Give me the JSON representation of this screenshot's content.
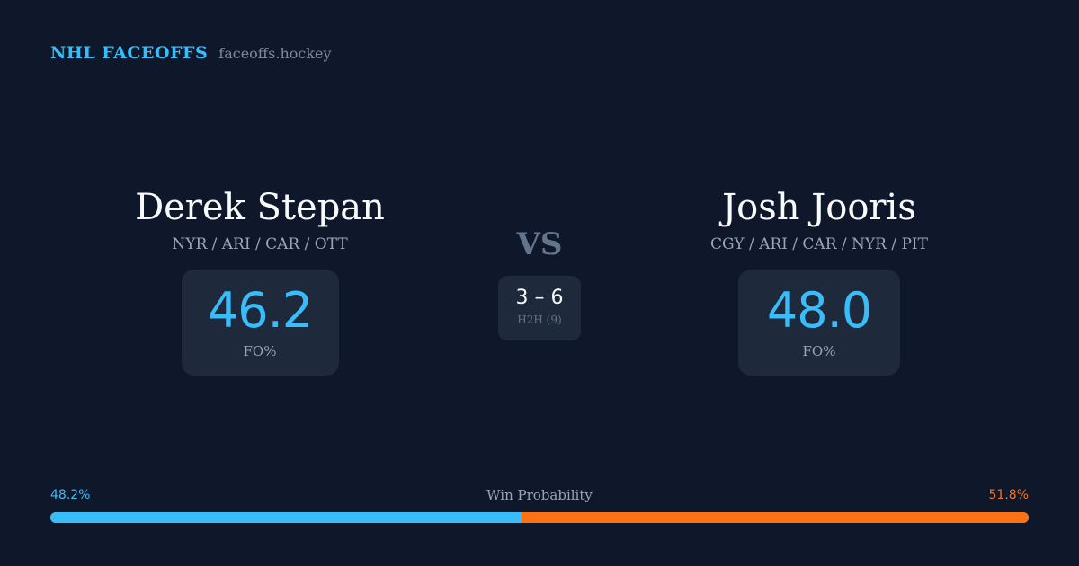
{
  "brand": {
    "title": "NHL FACEOFFS",
    "site": "faceoffs.hockey"
  },
  "players": [
    {
      "name": "Derek Stepan",
      "teams": "NYR / ARI / CAR / OTT",
      "fo_pct": "46.2",
      "fo_label": "FO%"
    },
    {
      "name": "Josh Jooris",
      "teams": "CGY / ARI / CAR / NYR / PIT",
      "fo_pct": "48.0",
      "fo_label": "FO%"
    }
  ],
  "vs_label": "VS",
  "h2h": {
    "score": "3 – 6",
    "label": "H2H (9)"
  },
  "win_probability": {
    "title": "Win Probability",
    "left_label": "48.2%",
    "right_label": "51.8%",
    "left_fraction": 0.482,
    "left_color": "#38bdf8",
    "right_color": "#f97316"
  }
}
